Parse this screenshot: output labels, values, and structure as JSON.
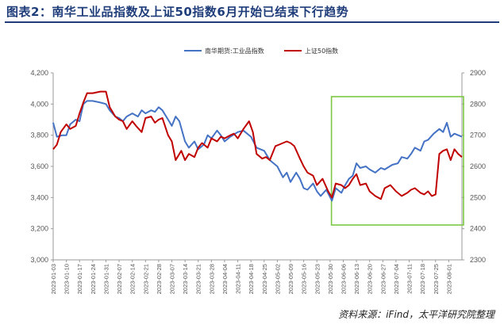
{
  "header": {
    "title": "图表2：南华工业品指数及上证50指数6月开始已结束下行趋势"
  },
  "footer": {
    "source": "资料来源：iFind，太平洋研究院整理"
  },
  "chart_data": {
    "type": "line",
    "title": "图表2：南华工业品指数及上证50指数6月开始已结束下行趋势",
    "xlabel": "",
    "ylabel": "",
    "y_left": {
      "lim": [
        3000,
        4200
      ],
      "ticks": [
        "3,000",
        "3,200",
        "3,400",
        "3,600",
        "3,800",
        "4,000",
        "4,200"
      ]
    },
    "y_right": {
      "lim": [
        2300,
        2900
      ],
      "ticks": [
        "2300",
        "2400",
        "2500",
        "2600",
        "2700",
        "2800",
        "2900"
      ]
    },
    "x_range": [
      "2023-01-03",
      "2023-08-08"
    ],
    "x_ticks": [
      "2023-01-03",
      "2023-01-10",
      "2023-01-17",
      "2023-01-24",
      "2023-01-31",
      "2023-02-07",
      "2023-02-14",
      "2023-02-21",
      "2023-02-28",
      "2023-03-07",
      "2023-03-14",
      "2023-03-21",
      "2023-03-28",
      "2023-04-04",
      "2023-04-11",
      "2023-04-18",
      "2023-04-25",
      "2023-05-02",
      "2023-05-09",
      "2023-05-16",
      "2023-05-23",
      "2023-05-30",
      "2023-06-06",
      "2023-06-13",
      "2023-06-20",
      "2023-06-27",
      "2023-07-04",
      "2023-07-11",
      "2023-07-18",
      "2023-07-25",
      "2023-08-01"
    ],
    "legend_placement": "top-center",
    "grid": false,
    "highlight_box": {
      "x_start": "2023-06-01",
      "x_end": "2023-08-08",
      "color": "#7cc842"
    },
    "series": [
      {
        "name": "南华期货:工业品指数",
        "axis": "left",
        "color": "#4472c4",
        "points": [
          [
            "2023-01-03",
            3880
          ],
          [
            "2023-01-05",
            3790
          ],
          [
            "2023-01-08",
            3800
          ],
          [
            "2023-01-10",
            3800
          ],
          [
            "2023-01-12",
            3870
          ],
          [
            "2023-01-15",
            3900
          ],
          [
            "2023-01-17",
            3890
          ],
          [
            "2023-01-19",
            4000
          ],
          [
            "2023-01-21",
            4020
          ],
          [
            "2023-01-24",
            4020
          ],
          [
            "2023-01-28",
            4010
          ],
          [
            "2023-01-31",
            4000
          ],
          [
            "2023-02-02",
            3960
          ],
          [
            "2023-02-05",
            3920
          ],
          [
            "2023-02-07",
            3910
          ],
          [
            "2023-02-09",
            3890
          ],
          [
            "2023-02-11",
            3920
          ],
          [
            "2023-02-14",
            3940
          ],
          [
            "2023-02-17",
            3920
          ],
          [
            "2023-02-19",
            3960
          ],
          [
            "2023-02-21",
            3940
          ],
          [
            "2023-02-24",
            3960
          ],
          [
            "2023-02-26",
            3950
          ],
          [
            "2023-02-28",
            3980
          ],
          [
            "2023-03-02",
            3960
          ],
          [
            "2023-03-05",
            3900
          ],
          [
            "2023-03-07",
            3860
          ],
          [
            "2023-03-09",
            3920
          ],
          [
            "2023-03-11",
            3890
          ],
          [
            "2023-03-14",
            3760
          ],
          [
            "2023-03-16",
            3720
          ],
          [
            "2023-03-19",
            3760
          ],
          [
            "2023-03-21",
            3710
          ],
          [
            "2023-03-24",
            3740
          ],
          [
            "2023-03-26",
            3800
          ],
          [
            "2023-03-28",
            3780
          ],
          [
            "2023-03-31",
            3830
          ],
          [
            "2023-04-02",
            3800
          ],
          [
            "2023-04-04",
            3760
          ],
          [
            "2023-04-07",
            3790
          ],
          [
            "2023-04-11",
            3820
          ],
          [
            "2023-04-14",
            3830
          ],
          [
            "2023-04-18",
            3790
          ],
          [
            "2023-04-21",
            3720
          ],
          [
            "2023-04-25",
            3700
          ],
          [
            "2023-04-28",
            3640
          ],
          [
            "2023-05-02",
            3600
          ],
          [
            "2023-05-05",
            3530
          ],
          [
            "2023-05-07",
            3560
          ],
          [
            "2023-05-09",
            3500
          ],
          [
            "2023-05-12",
            3560
          ],
          [
            "2023-05-14",
            3520
          ],
          [
            "2023-05-16",
            3460
          ],
          [
            "2023-05-18",
            3450
          ],
          [
            "2023-05-21",
            3490
          ],
          [
            "2023-05-23",
            3440
          ],
          [
            "2023-05-25",
            3410
          ],
          [
            "2023-05-28",
            3450
          ],
          [
            "2023-05-31",
            3380
          ],
          [
            "2023-06-02",
            3460
          ],
          [
            "2023-06-05",
            3430
          ],
          [
            "2023-06-07",
            3480
          ],
          [
            "2023-06-09",
            3520
          ],
          [
            "2023-06-11",
            3540
          ],
          [
            "2023-06-13",
            3620
          ],
          [
            "2023-06-15",
            3590
          ],
          [
            "2023-06-18",
            3600
          ],
          [
            "2023-06-20",
            3580
          ],
          [
            "2023-06-23",
            3560
          ],
          [
            "2023-06-26",
            3590
          ],
          [
            "2023-06-28",
            3580
          ],
          [
            "2023-07-02",
            3610
          ],
          [
            "2023-07-05",
            3620
          ],
          [
            "2023-07-07",
            3660
          ],
          [
            "2023-07-10",
            3650
          ],
          [
            "2023-07-12",
            3680
          ],
          [
            "2023-07-14",
            3720
          ],
          [
            "2023-07-17",
            3700
          ],
          [
            "2023-07-19",
            3760
          ],
          [
            "2023-07-21",
            3770
          ],
          [
            "2023-07-24",
            3810
          ],
          [
            "2023-07-27",
            3840
          ],
          [
            "2023-07-29",
            3820
          ],
          [
            "2023-07-31",
            3880
          ],
          [
            "2023-08-02",
            3790
          ],
          [
            "2023-08-04",
            3810
          ],
          [
            "2023-08-08",
            3790
          ]
        ]
      },
      {
        "name": "上证50指数",
        "axis": "right",
        "color": "#c00000",
        "points": [
          [
            "2023-01-03",
            2655
          ],
          [
            "2023-01-05",
            2670
          ],
          [
            "2023-01-07",
            2710
          ],
          [
            "2023-01-10",
            2735
          ],
          [
            "2023-01-12",
            2720
          ],
          [
            "2023-01-15",
            2730
          ],
          [
            "2023-01-17",
            2770
          ],
          [
            "2023-01-19",
            2805
          ],
          [
            "2023-01-21",
            2835
          ],
          [
            "2023-01-24",
            2835
          ],
          [
            "2023-01-28",
            2840
          ],
          [
            "2023-01-31",
            2840
          ],
          [
            "2023-02-02",
            2790
          ],
          [
            "2023-02-05",
            2760
          ],
          [
            "2023-02-07",
            2750
          ],
          [
            "2023-02-09",
            2745
          ],
          [
            "2023-02-11",
            2720
          ],
          [
            "2023-02-14",
            2745
          ],
          [
            "2023-02-16",
            2730
          ],
          [
            "2023-02-19",
            2710
          ],
          [
            "2023-02-21",
            2755
          ],
          [
            "2023-02-24",
            2760
          ],
          [
            "2023-02-26",
            2740
          ],
          [
            "2023-02-28",
            2750
          ],
          [
            "2023-03-02",
            2755
          ],
          [
            "2023-03-05",
            2700
          ],
          [
            "2023-03-07",
            2680
          ],
          [
            "2023-03-09",
            2620
          ],
          [
            "2023-03-12",
            2650
          ],
          [
            "2023-03-14",
            2620
          ],
          [
            "2023-03-16",
            2640
          ],
          [
            "2023-03-19",
            2630
          ],
          [
            "2023-03-21",
            2660
          ],
          [
            "2023-03-23",
            2675
          ],
          [
            "2023-03-26",
            2660
          ],
          [
            "2023-03-28",
            2690
          ],
          [
            "2023-03-31",
            2680
          ],
          [
            "2023-04-02",
            2695
          ],
          [
            "2023-04-04",
            2690
          ],
          [
            "2023-04-07",
            2700
          ],
          [
            "2023-04-09",
            2705
          ],
          [
            "2023-04-11",
            2690
          ],
          [
            "2023-04-14",
            2720
          ],
          [
            "2023-04-17",
            2745
          ],
          [
            "2023-04-19",
            2710
          ],
          [
            "2023-04-21",
            2640
          ],
          [
            "2023-04-24",
            2625
          ],
          [
            "2023-04-26",
            2630
          ],
          [
            "2023-04-28",
            2620
          ],
          [
            "2023-05-01",
            2665
          ],
          [
            "2023-05-03",
            2670
          ],
          [
            "2023-05-07",
            2680
          ],
          [
            "2023-05-09",
            2675
          ],
          [
            "2023-05-11",
            2665
          ],
          [
            "2023-05-14",
            2625
          ],
          [
            "2023-05-16",
            2600
          ],
          [
            "2023-05-18",
            2580
          ],
          [
            "2023-05-21",
            2570
          ],
          [
            "2023-05-23",
            2540
          ],
          [
            "2023-05-26",
            2560
          ],
          [
            "2023-05-29",
            2520
          ],
          [
            "2023-05-31",
            2500
          ],
          [
            "2023-06-02",
            2545
          ],
          [
            "2023-06-05",
            2540
          ],
          [
            "2023-06-07",
            2530
          ],
          [
            "2023-06-09",
            2540
          ],
          [
            "2023-06-11",
            2560
          ],
          [
            "2023-06-13",
            2575
          ],
          [
            "2023-06-15",
            2540
          ],
          [
            "2023-06-18",
            2545
          ],
          [
            "2023-06-20",
            2520
          ],
          [
            "2023-06-23",
            2505
          ],
          [
            "2023-06-26",
            2495
          ],
          [
            "2023-06-28",
            2530
          ],
          [
            "2023-07-01",
            2540
          ],
          [
            "2023-07-04",
            2520
          ],
          [
            "2023-07-07",
            2505
          ],
          [
            "2023-07-10",
            2515
          ],
          [
            "2023-07-12",
            2525
          ],
          [
            "2023-07-14",
            2530
          ],
          [
            "2023-07-17",
            2515
          ],
          [
            "2023-07-19",
            2510
          ],
          [
            "2023-07-21",
            2520
          ],
          [
            "2023-07-23",
            2505
          ],
          [
            "2023-07-25",
            2510
          ],
          [
            "2023-07-27",
            2640
          ],
          [
            "2023-07-29",
            2650
          ],
          [
            "2023-07-31",
            2655
          ],
          [
            "2023-08-02",
            2620
          ],
          [
            "2023-08-04",
            2655
          ],
          [
            "2023-08-06",
            2640
          ],
          [
            "2023-08-08",
            2630
          ]
        ]
      }
    ]
  }
}
